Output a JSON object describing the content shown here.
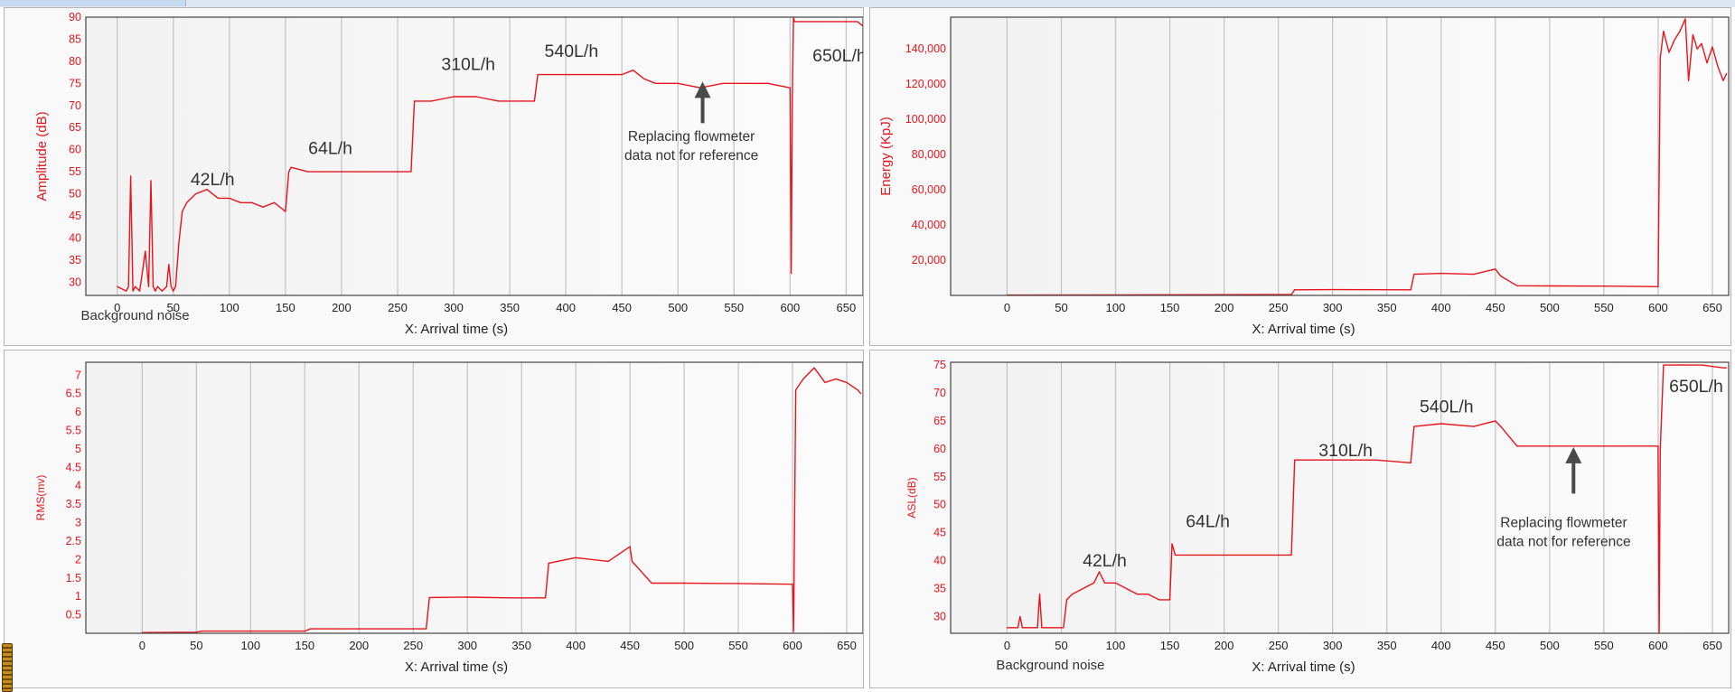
{
  "colors": {
    "series": "#e8141c",
    "axis_text": "#e8141c",
    "annotation": "#333333",
    "arrow": "#4a4a4a"
  },
  "chart_data": [
    {
      "type": "line",
      "ylabel": "Amplitude (dB)",
      "xlabel": "X: Arrival time (s)",
      "xlim": [
        -28,
        665
      ],
      "ylim": [
        27,
        90
      ],
      "xticks": [
        0,
        50,
        100,
        150,
        200,
        250,
        300,
        350,
        400,
        450,
        500,
        550,
        600,
        650
      ],
      "yticks": [
        30,
        35,
        40,
        45,
        50,
        55,
        60,
        65,
        70,
        75,
        80,
        85,
        90
      ],
      "y_format": "plain",
      "grid": "vertical",
      "series": [
        {
          "x": [
            0,
            8,
            10,
            12,
            14,
            16,
            20,
            25,
            28,
            30,
            32,
            34,
            36,
            40,
            44,
            46,
            48,
            50,
            52,
            55,
            58,
            62,
            70,
            80,
            90,
            100,
            110,
            120,
            130,
            140,
            150,
            153,
            155,
            170,
            190,
            210,
            230,
            250,
            262,
            265,
            280,
            300,
            320,
            340,
            360,
            372,
            375,
            390,
            410,
            430,
            450,
            460,
            470,
            480,
            500,
            520,
            540,
            560,
            580,
            600,
            601,
            602,
            603,
            604,
            610,
            620,
            640,
            660,
            665
          ],
          "y": [
            29,
            28,
            29,
            54,
            28,
            29,
            28,
            37,
            29,
            53,
            29,
            28,
            29,
            28,
            29,
            34,
            29,
            28,
            29,
            39,
            46,
            48,
            50,
            51,
            49,
            49,
            48,
            48,
            47,
            48,
            46,
            55,
            56,
            55,
            55,
            55,
            55,
            55,
            55,
            71,
            71,
            72,
            72,
            71,
            71,
            71,
            77,
            77,
            77,
            77,
            77,
            78,
            76,
            75,
            75,
            74,
            75,
            75,
            75,
            74,
            32,
            72,
            90,
            89,
            89,
            89,
            89,
            89,
            88
          ]
        }
      ],
      "annotations": [
        {
          "text": "42L/h",
          "x": 85,
          "y": 52
        },
        {
          "text": "64L/h",
          "x": 190,
          "y": 59
        },
        {
          "text": "310L/h",
          "x": 313,
          "y": 78
        },
        {
          "text": "540L/h",
          "x": 405,
          "y": 81
        },
        {
          "text": "650L/h",
          "x": 644,
          "y": 80
        },
        {
          "text": "Background noise",
          "x": 16,
          "y": 21.5
        }
      ],
      "note": {
        "lines": [
          "Replacing flowmeter",
          "data not for reference"
        ],
        "x": 512,
        "y": 62,
        "arrow_x": 522,
        "arrow_from": 66,
        "arrow_to": 75
      }
    },
    {
      "type": "line",
      "ylabel": "Energy (KpJ)",
      "xlabel": "X: Arrival time (s)",
      "xlim": [
        -52,
        665
      ],
      "ylim": [
        0,
        158000
      ],
      "xticks": [
        0,
        50,
        100,
        150,
        200,
        250,
        300,
        350,
        400,
        450,
        500,
        550,
        600,
        650
      ],
      "yticks": [
        20000,
        40000,
        60000,
        80000,
        100000,
        120000,
        140000
      ],
      "y_format": "thousands",
      "grid": "vertical",
      "series": [
        {
          "x": [
            0,
            100,
            200,
            262,
            265,
            300,
            372,
            375,
            400,
            430,
            450,
            455,
            470,
            500,
            550,
            600,
            602,
            605,
            610,
            615,
            620,
            625,
            628,
            632,
            636,
            640,
            645,
            650,
            655,
            660,
            663
          ],
          "y": [
            200,
            300,
            400,
            500,
            3200,
            3300,
            3200,
            12000,
            12500,
            12000,
            15000,
            11000,
            5500,
            5400,
            5300,
            5000,
            135000,
            150000,
            138000,
            145000,
            150000,
            157000,
            122000,
            148000,
            140000,
            143000,
            132000,
            141000,
            130000,
            122000,
            126000
          ]
        }
      ],
      "annotations": []
    },
    {
      "type": "line",
      "ylabel": "RMS(mv)",
      "xlabel": "X: Arrival time (s)",
      "xlim": [
        -52,
        665
      ],
      "ylim": [
        0,
        7.35
      ],
      "xticks": [
        0,
        50,
        100,
        150,
        200,
        250,
        300,
        350,
        400,
        450,
        500,
        550,
        600,
        650
      ],
      "yticks": [
        0.5,
        1,
        1.5,
        2,
        2.5,
        3,
        3.5,
        4,
        4.5,
        5,
        5.5,
        6,
        6.5,
        7
      ],
      "y_format": "plain",
      "grid": "vertical",
      "series": [
        {
          "x": [
            0,
            50,
            55,
            150,
            155,
            262,
            265,
            300,
            340,
            372,
            375,
            400,
            430,
            450,
            452,
            470,
            500,
            550,
            600,
            601,
            603,
            610,
            620,
            630,
            640,
            650,
            660,
            663
          ],
          "y": [
            0.02,
            0.03,
            0.06,
            0.06,
            0.12,
            0.12,
            0.97,
            0.98,
            0.96,
            0.96,
            1.9,
            2.05,
            1.95,
            2.35,
            1.95,
            1.36,
            1.36,
            1.35,
            1.33,
            0.05,
            6.6,
            6.9,
            7.2,
            6.8,
            6.9,
            6.8,
            6.6,
            6.5
          ]
        }
      ],
      "annotations": []
    },
    {
      "type": "line",
      "ylabel": "ASL(dB)",
      "xlabel": "X: Arrival time (s)",
      "xlim": [
        -52,
        665
      ],
      "ylim": [
        27,
        75.5
      ],
      "xticks": [
        0,
        50,
        100,
        150,
        200,
        250,
        300,
        350,
        400,
        450,
        500,
        550,
        600,
        650
      ],
      "yticks": [
        30,
        35,
        40,
        45,
        50,
        55,
        60,
        65,
        70,
        75
      ],
      "y_format": "plain",
      "grid": "vertical",
      "series": [
        {
          "x": [
            0,
            10,
            12,
            14,
            20,
            28,
            30,
            32,
            35,
            50,
            52,
            55,
            60,
            70,
            80,
            85,
            90,
            100,
            110,
            120,
            130,
            140,
            150,
            152,
            155,
            160,
            200,
            250,
            262,
            265,
            300,
            340,
            372,
            375,
            400,
            430,
            450,
            455,
            470,
            500,
            550,
            600,
            601,
            602,
            605,
            620,
            640,
            660,
            663
          ],
          "y": [
            28,
            28,
            30,
            28,
            28,
            28,
            34,
            28,
            28,
            28,
            28,
            33,
            34,
            35,
            36,
            38,
            36,
            36,
            35,
            34,
            34,
            33,
            33,
            43,
            41,
            41,
            41,
            41,
            41,
            58,
            58,
            58,
            57.5,
            64,
            64.5,
            64,
            65,
            64,
            60.5,
            60.5,
            60.5,
            60.5,
            27,
            60,
            75,
            75,
            75,
            74.5,
            74.5
          ]
        }
      ],
      "annotations": [
        {
          "text": "42L/h",
          "x": 90,
          "y": 39
        },
        {
          "text": "64L/h",
          "x": 185,
          "y": 46
        },
        {
          "text": "310L/h",
          "x": 312,
          "y": 58.7
        },
        {
          "text": "540L/h",
          "x": 405,
          "y": 66.5
        },
        {
          "text": "650L/h",
          "x": 635,
          "y": 70.2
        },
        {
          "text": "Background noise",
          "x": 40,
          "y": 20.5
        }
      ],
      "note": {
        "lines": [
          "Replacing flowmeter",
          "data not for reference"
        ],
        "x": 513,
        "y": 46,
        "arrow_x": 522,
        "arrow_from": 52,
        "arrow_to": 60
      }
    }
  ]
}
